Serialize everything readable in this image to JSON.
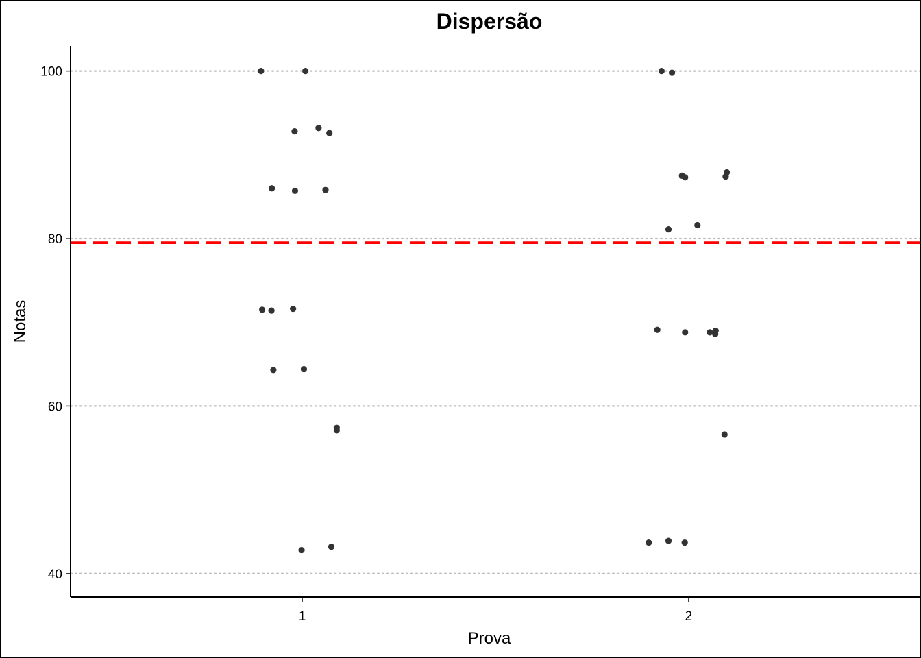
{
  "chart_data": {
    "type": "scatter",
    "title": "Dispersão",
    "xlabel": "Prova",
    "ylabel": "Notas",
    "x_ticks": [
      "1",
      "2"
    ],
    "y_ticks": [
      40,
      60,
      80,
      100
    ],
    "xlim": [
      0.4,
      2.6
    ],
    "ylim": [
      37.2,
      103
    ],
    "grid": "horizontal-dotted",
    "mean_line": {
      "y": 79.5,
      "color": "#ff0000",
      "style": "dashed"
    },
    "point_color": "#333333",
    "points": [
      {
        "x": 0.893,
        "y": 100.0
      },
      {
        "x": 1.008,
        "y": 100.0
      },
      {
        "x": 1.042,
        "y": 93.2
      },
      {
        "x": 0.98,
        "y": 92.8
      },
      {
        "x": 1.07,
        "y": 92.6
      },
      {
        "x": 0.921,
        "y": 86.0
      },
      {
        "x": 0.981,
        "y": 85.7
      },
      {
        "x": 1.06,
        "y": 85.8
      },
      {
        "x": 0.896,
        "y": 71.5
      },
      {
        "x": 0.92,
        "y": 71.4
      },
      {
        "x": 0.976,
        "y": 71.6
      },
      {
        "x": 0.925,
        "y": 64.3
      },
      {
        "x": 1.004,
        "y": 64.4
      },
      {
        "x": 1.089,
        "y": 57.4
      },
      {
        "x": 1.089,
        "y": 57.1
      },
      {
        "x": 0.998,
        "y": 42.8
      },
      {
        "x": 1.075,
        "y": 43.2
      },
      {
        "x": 1.93,
        "y": 100.0
      },
      {
        "x": 1.957,
        "y": 99.8
      },
      {
        "x": 2.099,
        "y": 87.9
      },
      {
        "x": 1.983,
        "y": 87.5
      },
      {
        "x": 1.991,
        "y": 87.3
      },
      {
        "x": 2.096,
        "y": 87.4
      },
      {
        "x": 2.023,
        "y": 81.6
      },
      {
        "x": 1.948,
        "y": 81.1
      },
      {
        "x": 1.919,
        "y": 69.1
      },
      {
        "x": 1.991,
        "y": 68.8
      },
      {
        "x": 2.055,
        "y": 68.8
      },
      {
        "x": 2.07,
        "y": 69.0
      },
      {
        "x": 2.069,
        "y": 68.6
      },
      {
        "x": 2.093,
        "y": 56.6
      },
      {
        "x": 1.897,
        "y": 43.7
      },
      {
        "x": 1.948,
        "y": 43.9
      },
      {
        "x": 1.99,
        "y": 43.7
      }
    ]
  }
}
